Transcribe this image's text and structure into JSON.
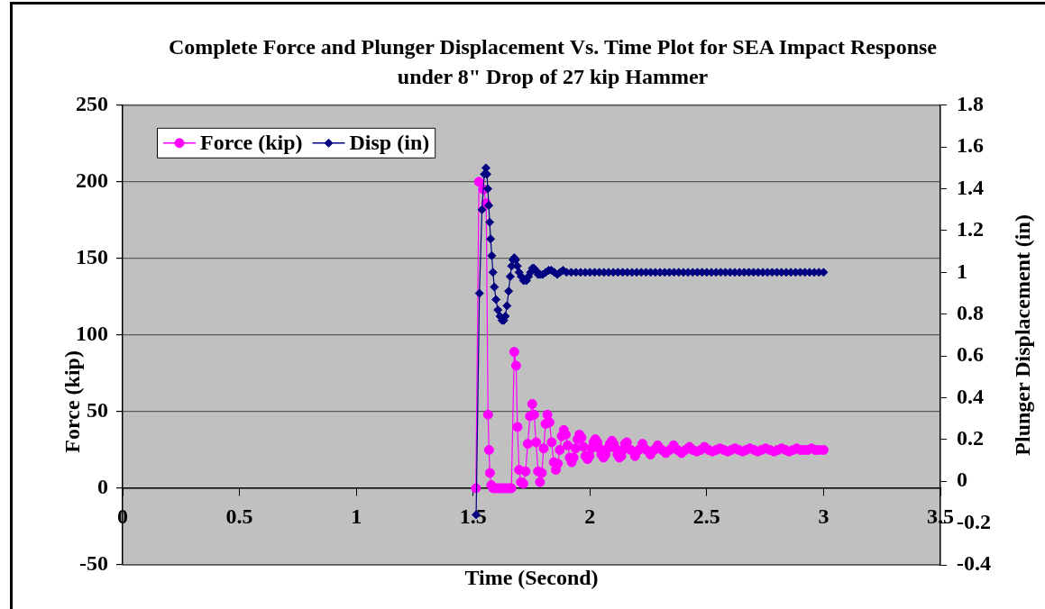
{
  "chart_data": {
    "type": "line",
    "title": "Complete Force and Plunger Displacement Vs. Time Plot for SEA Impact Response under 8\" Drop of 27 kip Hammer",
    "xlabel": "Time (Second)",
    "ylabel": "Force (kip)",
    "y2label": "Plunger Displacement (in)",
    "xlim": [
      0,
      3.5
    ],
    "xticks": [
      0,
      0.5,
      1,
      1.5,
      2,
      2.5,
      3,
      3.5
    ],
    "ylim": [
      -50,
      250
    ],
    "yticks": [
      -50,
      0,
      50,
      100,
      150,
      200,
      250
    ],
    "y2lim": [
      -0.4,
      1.8
    ],
    "y2ticks": [
      -0.4,
      -0.2,
      0,
      0.2,
      0.4,
      0.6,
      0.8,
      1,
      1.2,
      1.4,
      1.6,
      1.8
    ],
    "grid": "y",
    "legend": "top left",
    "line_style": "solid",
    "series": [
      {
        "name": "Force (kip)",
        "color": "#ff00ff",
        "marker": "circle",
        "x": [
          1.512,
          1.525,
          1.545,
          1.556,
          1.564,
          1.568,
          1.572,
          1.578,
          1.586,
          1.596,
          1.606,
          1.616,
          1.626,
          1.636,
          1.646,
          1.656,
          1.664,
          1.676,
          1.684,
          1.69,
          1.697,
          1.705,
          1.715,
          1.7245,
          1.734,
          1.7435,
          1.753,
          1.761,
          1.7695,
          1.778,
          1.786,
          1.794,
          1.802,
          1.81,
          1.818,
          1.827,
          1.836,
          1.845,
          1.854,
          1.8625,
          1.871,
          1.8795,
          1.888,
          1.8965,
          1.905,
          1.9135,
          1.922,
          1.93,
          1.9385,
          1.947,
          1.955,
          1.964,
          1.9725,
          1.981,
          1.99,
          1.998,
          2.0065,
          2.015,
          2.023,
          2.032,
          2.0405,
          2.049,
          2.058,
          2.067,
          2.076,
          2.085,
          2.094,
          2.102,
          2.11,
          2.118,
          2.126,
          2.134,
          2.142,
          2.15,
          2.158,
          2.175,
          2.193,
          2.209,
          2.225,
          2.242,
          2.259,
          2.275,
          2.29,
          2.308,
          2.325,
          2.342,
          2.358,
          2.375,
          2.392,
          2.409,
          2.426,
          2.441,
          2.457,
          2.474,
          2.49,
          2.508,
          2.525,
          2.541,
          2.557,
          2.573,
          2.589,
          2.605,
          2.621,
          2.637,
          2.653,
          2.669,
          2.685,
          2.702,
          2.718,
          2.735,
          2.752,
          2.77,
          2.788,
          2.804,
          2.82,
          2.837,
          2.853,
          2.869,
          2.885,
          2.901,
          2.917,
          2.933,
          2.949,
          2.965,
          2.981,
          3
        ],
        "values": [
          0,
          200,
          195,
          186,
          48,
          25,
          10,
          2,
          0,
          0,
          0,
          0,
          0,
          0,
          0,
          0,
          0,
          89,
          80,
          40,
          12,
          4,
          3,
          11,
          29,
          47,
          55,
          48,
          30,
          11,
          4,
          10,
          26,
          42,
          48,
          43,
          30,
          17,
          12,
          16,
          25,
          34,
          38,
          35,
          28,
          20,
          17,
          20,
          26,
          32,
          35,
          33,
          27,
          21,
          19,
          21,
          26,
          30,
          32,
          30,
          26,
          22,
          20,
          22,
          26,
          29,
          31,
          29,
          26,
          22,
          20,
          21,
          25,
          29,
          30,
          25,
          21,
          25,
          29,
          25,
          22,
          25,
          28,
          25,
          23,
          25,
          28,
          25,
          23,
          25,
          27,
          25,
          24,
          25,
          27,
          25,
          24,
          25,
          26,
          25,
          24,
          25,
          26,
          25,
          24,
          25,
          26,
          25,
          24,
          25,
          26,
          25,
          24,
          25,
          26,
          25,
          24,
          25,
          26,
          25,
          25,
          25,
          26,
          25,
          25,
          25
        ]
      },
      {
        "name": "Disp (in)",
        "color": "#000080",
        "marker": "diamond",
        "axis": "y2",
        "x": [
          1.513,
          1.527,
          1.538,
          1.548,
          1.555,
          1.559,
          1.563,
          1.567,
          1.571,
          1.575,
          1.58,
          1.585,
          1.591,
          1.598,
          1.606,
          1.615,
          1.624,
          1.631,
          1.638,
          1.645,
          1.652,
          1.659,
          1.665,
          1.671,
          1.676,
          1.682,
          1.689,
          1.697,
          1.706,
          1.716,
          1.728,
          1.737,
          1.746,
          1.754,
          1.76,
          1.768,
          1.778,
          1.788,
          1.798,
          1.811,
          1.824,
          1.835,
          1.848,
          1.86,
          1.872,
          1.885,
          1.9,
          1.92,
          1.94,
          1.96,
          1.98,
          2,
          2.02,
          2.04,
          2.06,
          2.08,
          2.1,
          2.12,
          2.14,
          2.16,
          2.18,
          2.2,
          2.22,
          2.24,
          2.26,
          2.28,
          2.3,
          2.32,
          2.34,
          2.36,
          2.38,
          2.4,
          2.42,
          2.44,
          2.46,
          2.48,
          2.5,
          2.52,
          2.54,
          2.56,
          2.58,
          2.6,
          2.62,
          2.64,
          2.66,
          2.68,
          2.7,
          2.72,
          2.74,
          2.76,
          2.78,
          2.8,
          2.82,
          2.84,
          2.86,
          2.88,
          2.9,
          2.92,
          2.94,
          2.96,
          2.98,
          3
        ],
        "values": [
          -0.16,
          0.9,
          1.3,
          1.47,
          1.5,
          1.47,
          1.4,
          1.32,
          1.24,
          1.16,
          1.08,
          1,
          0.93,
          0.87,
          0.82,
          0.79,
          0.77,
          0.77,
          0.79,
          0.84,
          0.91,
          0.98,
          1.03,
          1.06,
          1.07,
          1.06,
          1.03,
          1,
          0.98,
          0.96,
          0.96,
          0.98,
          1,
          1.02,
          1.02,
          1.01,
          0.99,
          0.99,
          0.99,
          1,
          1.01,
          1.01,
          1,
          0.99,
          1,
          1.01,
          1,
          1,
          1,
          1,
          1,
          1,
          1,
          1,
          1,
          1,
          1,
          1,
          1,
          1,
          1,
          1,
          1,
          1,
          1,
          1,
          1,
          1,
          1,
          1,
          1,
          1,
          1,
          1,
          1,
          1,
          1,
          1,
          1,
          1,
          1,
          1,
          1,
          1,
          1,
          1,
          1,
          1,
          1,
          1,
          1,
          1,
          1,
          1,
          1,
          1,
          1,
          1,
          1,
          1,
          1,
          1
        ]
      }
    ]
  }
}
